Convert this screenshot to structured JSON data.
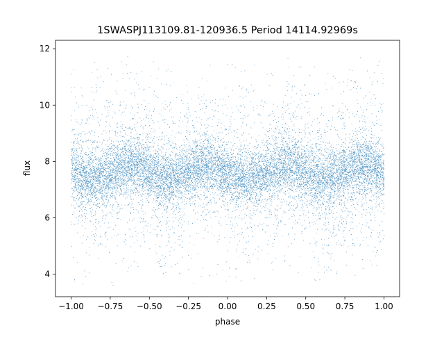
{
  "chart_data": {
    "type": "scatter",
    "title": "1SWASPJ113109.81-120936.5 Period 14114.92969s",
    "xlabel": "phase",
    "ylabel": "flux",
    "xlim": [
      -1.1,
      1.1
    ],
    "ylim": [
      3.2,
      12.3
    ],
    "x_ticks": [
      -1.0,
      -0.75,
      -0.5,
      -0.25,
      0.0,
      0.25,
      0.5,
      0.75,
      1.0
    ],
    "x_tick_labels": [
      "−1.00",
      "−0.75",
      "−0.50",
      "−0.25",
      "0.00",
      "0.25",
      "0.50",
      "0.75",
      "1.00"
    ],
    "y_ticks": [
      4,
      6,
      8,
      10,
      12
    ],
    "y_tick_labels": [
      "4",
      "6",
      "8",
      "10",
      "12"
    ],
    "grid": false,
    "point_color": "#1f77b4",
    "series": [
      {
        "x_range": [
          -1.0,
          1.0
        ],
        "y_range": [
          3.6,
          11.8
        ],
        "modulation": {
          "mean_flux": 7.6,
          "amplitude": 0.25,
          "cycles_per_phase": 2,
          "maxima_at_phase": [
            -0.75,
            -0.25,
            0.25,
            0.75
          ]
        },
        "core_scatter": 0.5,
        "halo_scatter": 1.6
      }
    ]
  }
}
